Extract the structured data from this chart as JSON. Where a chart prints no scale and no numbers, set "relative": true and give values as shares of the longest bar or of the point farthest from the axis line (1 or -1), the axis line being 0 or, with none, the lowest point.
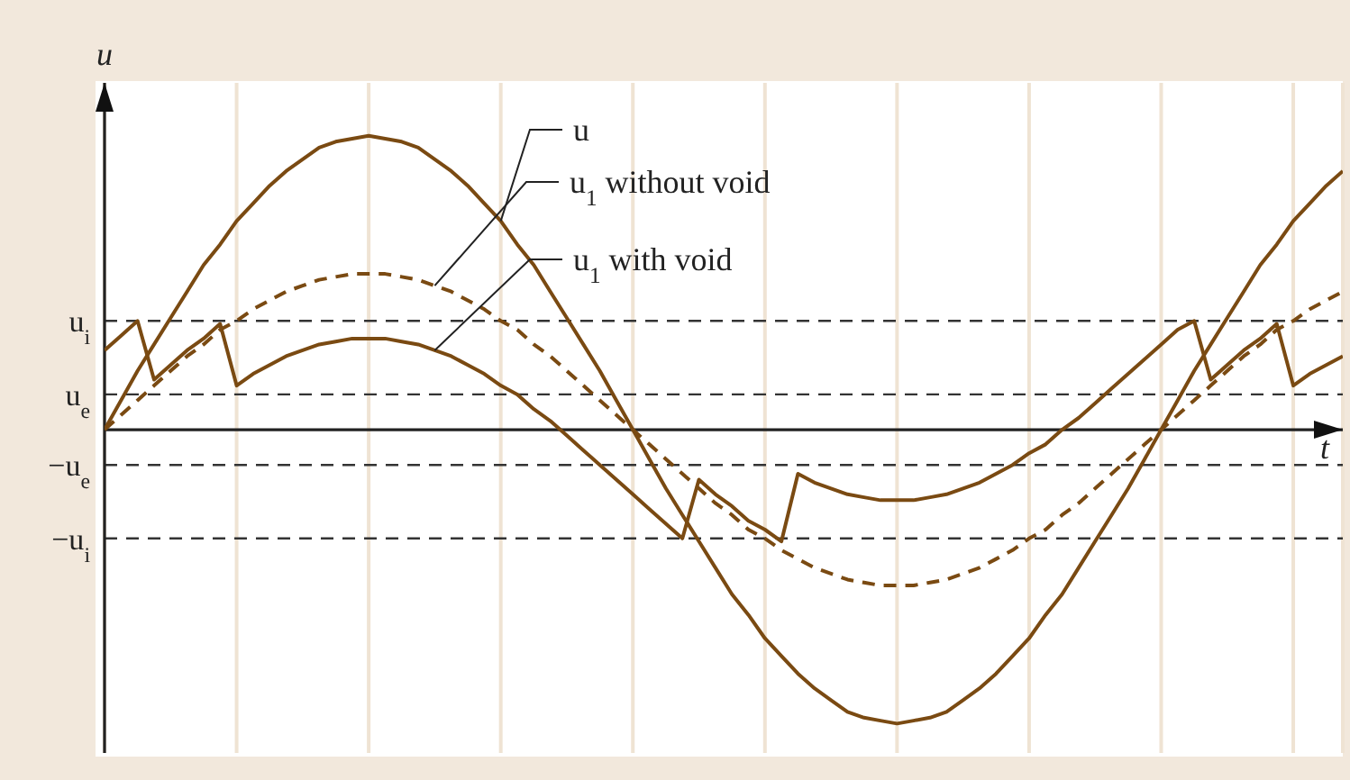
{
  "chart_data": {
    "type": "line",
    "relative": true,
    "xlabel": "t",
    "ylabel": "u",
    "marker": "none",
    "grid": "x",
    "categories": [
      null,
      null,
      null,
      null,
      null,
      null,
      null,
      null,
      null,
      null,
      null,
      null,
      null,
      null,
      null,
      null,
      null,
      null,
      null,
      null,
      null,
      null,
      null,
      null,
      null,
      null,
      null,
      null,
      null,
      null,
      null,
      null,
      null,
      null,
      null,
      null,
      null,
      null,
      null,
      null,
      null,
      null,
      null,
      null,
      null,
      null,
      null,
      null,
      null,
      null,
      null,
      null,
      null,
      null,
      null,
      null,
      null,
      null,
      null,
      null,
      null,
      null,
      null,
      null,
      null,
      null,
      null,
      null,
      null,
      null,
      null,
      null,
      null,
      null,
      null,
      null
    ],
    "series": [
      {
        "name": "u",
        "color": "#7a4a12",
        "line_style": "solid",
        "values": [
          0,
          0.1,
          0.2,
          0.29,
          0.38,
          0.47,
          0.56,
          0.63,
          0.71,
          0.77,
          0.83,
          0.88,
          0.92,
          0.96,
          0.98,
          0.99,
          1,
          0.99,
          0.98,
          0.96,
          0.92,
          0.88,
          0.83,
          0.77,
          0.71,
          0.63,
          0.56,
          0.47,
          0.38,
          0.29,
          0.2,
          0.1,
          0,
          -0.1,
          -0.2,
          -0.29,
          -0.38,
          -0.47,
          -0.56,
          -0.63,
          -0.71,
          -0.77,
          -0.83,
          -0.88,
          -0.92,
          -0.96,
          -0.98,
          -0.99,
          -1,
          -0.99,
          -0.98,
          -0.96,
          -0.92,
          -0.88,
          -0.83,
          -0.77,
          -0.71,
          -0.63,
          -0.56,
          -0.47,
          -0.38,
          -0.29,
          -0.2,
          -0.1,
          0,
          0.1,
          0.2,
          0.29,
          0.38,
          0.47,
          0.56,
          0.63,
          0.71,
          0.77,
          0.83,
          0.88
        ]
      },
      {
        "name": "u$_{1}$ without void",
        "color": "#7a4a12",
        "line_style": "dashed",
        "values": [
          0,
          0.05,
          0.1,
          0.15,
          0.2,
          0.25,
          0.29,
          0.34,
          0.37,
          0.41,
          0.44,
          0.47,
          0.49,
          0.51,
          0.52,
          0.53,
          0.53,
          0.53,
          0.52,
          0.51,
          0.49,
          0.47,
          0.44,
          0.41,
          0.37,
          0.34,
          0.29,
          0.25,
          0.2,
          0.15,
          0.1,
          0.05,
          0,
          -0.05,
          -0.1,
          -0.15,
          -0.2,
          -0.25,
          -0.29,
          -0.34,
          -0.37,
          -0.41,
          -0.44,
          -0.47,
          -0.49,
          -0.51,
          -0.52,
          -0.53,
          -0.53,
          -0.53,
          -0.52,
          -0.51,
          -0.49,
          -0.47,
          -0.44,
          -0.41,
          -0.37,
          -0.34,
          -0.29,
          -0.25,
          -0.2,
          -0.15,
          -0.1,
          -0.05,
          0,
          0.05,
          0.1,
          0.15,
          0.2,
          0.25,
          0.29,
          0.34,
          0.37,
          0.41,
          0.44,
          0.47
        ]
      },
      {
        "name": "u$_{1}$ with void",
        "color": "#7a4a12",
        "line_style": "solid",
        "values": [
          0.27,
          0.32,
          0.37,
          0.17,
          0.22,
          0.27,
          0.31,
          0.36,
          0.15,
          0.19,
          0.22,
          0.25,
          0.27,
          0.29,
          0.3,
          0.31,
          0.31,
          0.31,
          0.3,
          0.29,
          0.27,
          0.25,
          0.22,
          0.19,
          0.15,
          0.12,
          0.07,
          0.03,
          -0.02,
          -0.07,
          -0.12,
          -0.17,
          -0.22,
          -0.27,
          -0.32,
          -0.37,
          -0.17,
          -0.22,
          -0.26,
          -0.31,
          -0.34,
          -0.38,
          -0.15,
          -0.18,
          -0.2,
          -0.22,
          -0.23,
          -0.24,
          -0.24,
          -0.24,
          -0.23,
          -0.22,
          -0.2,
          -0.18,
          -0.15,
          -0.12,
          -0.08,
          -0.05,
          0,
          0.04,
          0.09,
          0.14,
          0.19,
          0.24,
          0.29,
          0.34,
          0.37,
          0.17,
          0.22,
          0.27,
          0.31,
          0.36,
          0.15,
          0.19,
          0.22,
          0.25
        ]
      }
    ],
    "ref_lines": [
      {
        "axis": "y",
        "value": 0.37,
        "label": "u$_{i}$",
        "color": "#333333",
        "line_style": "dashed"
      },
      {
        "axis": "y",
        "value": 0.12,
        "label": "u$_{e}$",
        "color": "#333333",
        "line_style": "dashed"
      },
      {
        "axis": "y",
        "value": -0.12,
        "label": "−u$_{e}$",
        "color": "#333333",
        "line_style": "dashed"
      },
      {
        "axis": "y",
        "value": -0.37,
        "label": "−u$_{i}$",
        "color": "#333333",
        "line_style": "dashed"
      }
    ]
  }
}
